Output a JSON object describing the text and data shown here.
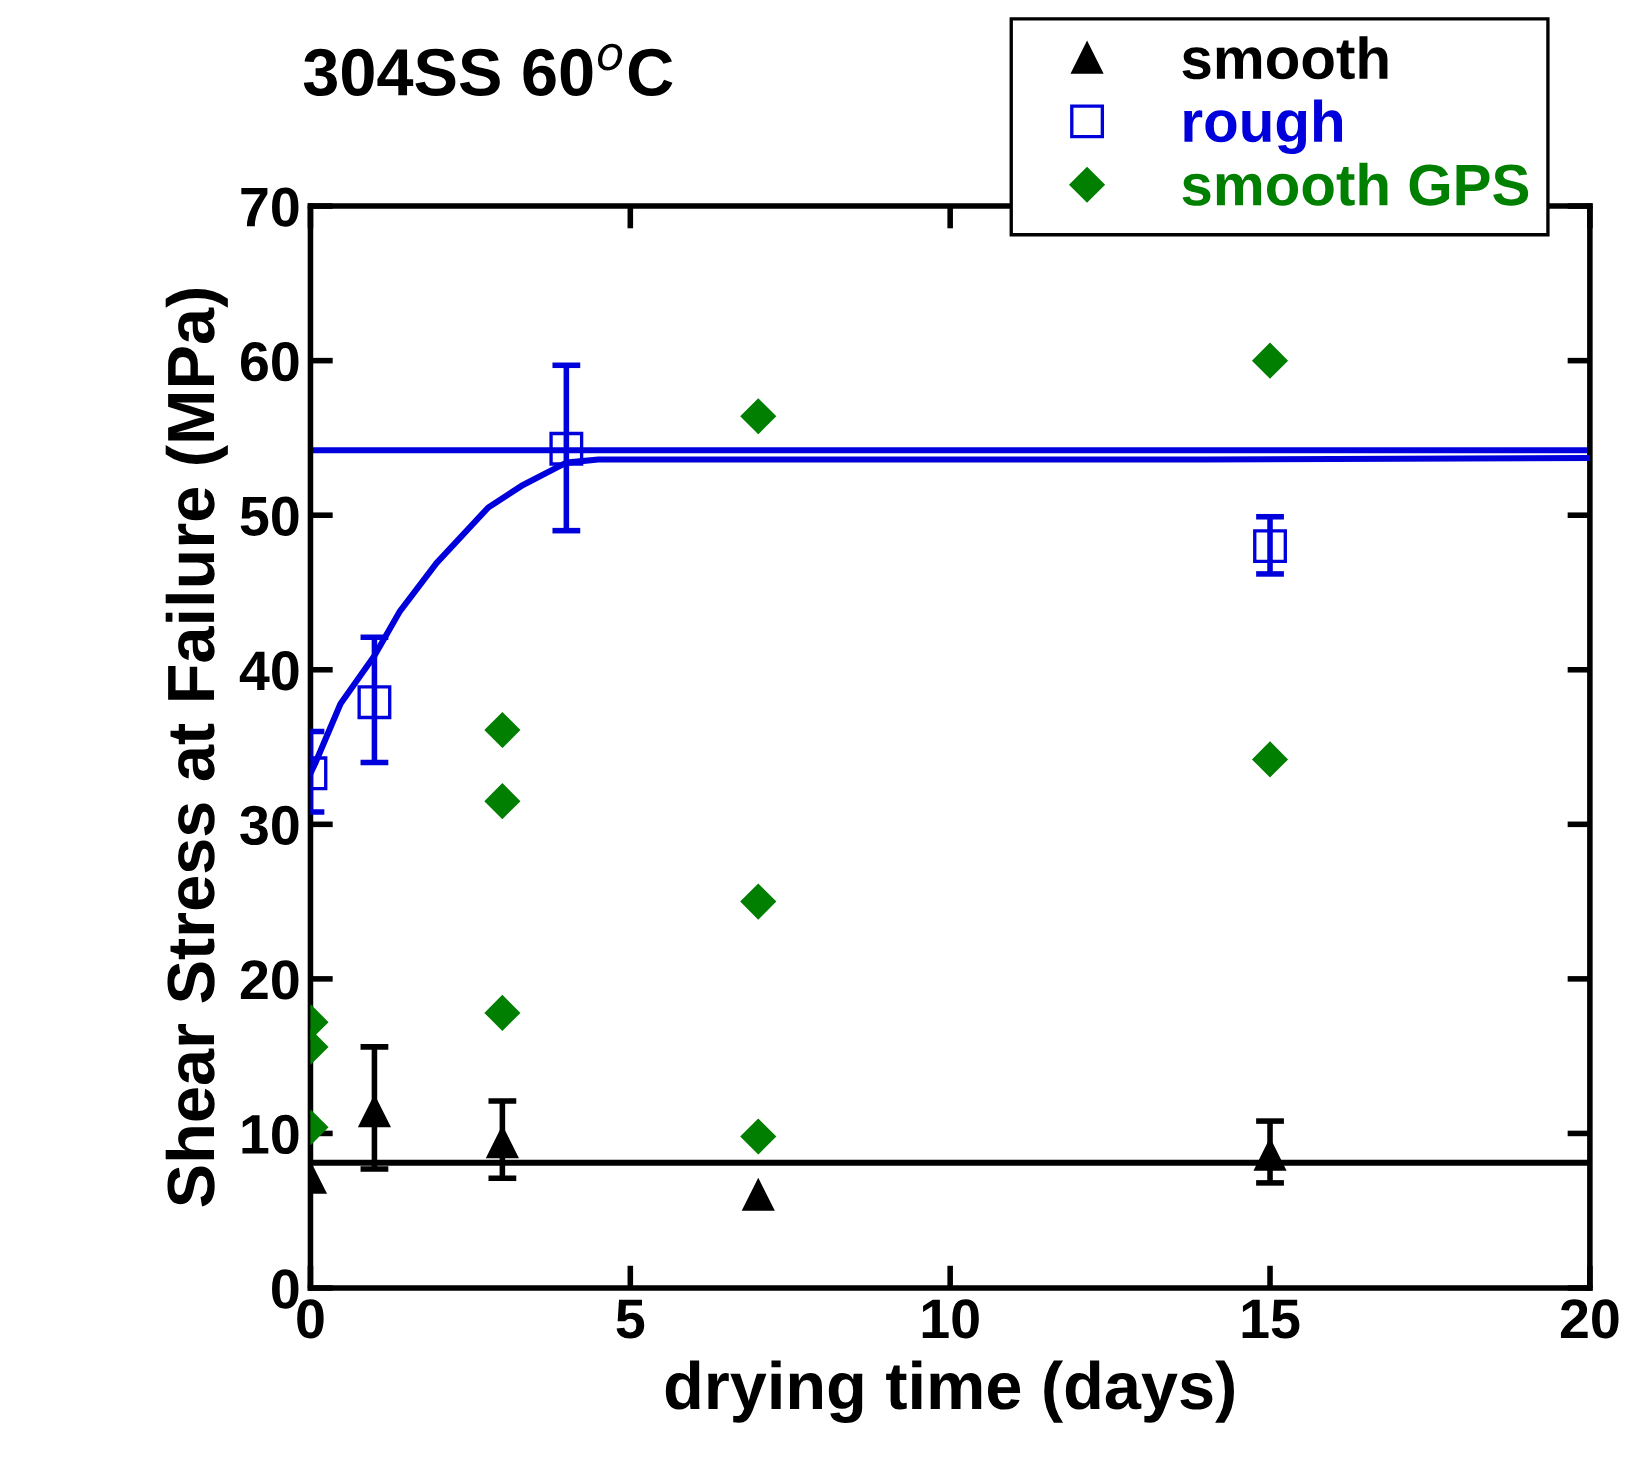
{
  "chart_data": {
    "type": "scatter",
    "title": "304SS 60$^{o}$C",
    "xlabel": "drying time (days)",
    "ylabel": "Shear Stress at Failure (MPa)",
    "xlim": [
      0,
      20
    ],
    "xticks": [
      0,
      5,
      10,
      15,
      20
    ],
    "ylim": [
      0,
      70
    ],
    "yticks": [
      0,
      10,
      20,
      30,
      40,
      50,
      60,
      70
    ],
    "grid": false,
    "legend": "top right",
    "series": [
      {
        "name": "smooth",
        "color": "#000000",
        "marker": "triangle",
        "x": [
          0,
          1,
          3,
          7,
          15
        ],
        "values": [
          7.1,
          11.4,
          9.4,
          6.0,
          8.6
        ],
        "errors": [
          null,
          [
            7.7,
            15.6
          ],
          [
            7.1,
            12.1
          ],
          null,
          [
            6.8,
            10.8
          ]
        ]
      },
      {
        "name": "rough",
        "color": "#0000dd",
        "marker": "square",
        "x": [
          0,
          1,
          4,
          15
        ],
        "values": [
          33.3,
          37.9,
          54.3,
          48.0
        ],
        "errors": [
          [
            30.8,
            36.0
          ],
          [
            34.0,
            42.1
          ],
          [
            49.0,
            59.7
          ],
          [
            46.2,
            49.9
          ]
        ]
      },
      {
        "name": "smooth GPS",
        "color": "#007f00",
        "marker": "diamond",
        "x": [
          0,
          0,
          0,
          3,
          3,
          3,
          7,
          7,
          7,
          15,
          15
        ],
        "values": [
          17.2,
          15.6,
          10.4,
          36.1,
          31.5,
          17.8,
          56.4,
          25.0,
          9.8,
          60.0,
          34.2
        ]
      },
      {
        "type": "line",
        "color": "#0000dd",
        "marker": "none",
        "line_style": "solid",
        "x": [
          0,
          0.07,
          0.47,
          1.0,
          1.4,
          1.97,
          2.78,
          3.3,
          4.0,
          4.5,
          14,
          20
        ],
        "values": [
          33.3,
          33.9,
          37.8,
          40.9,
          43.8,
          46.9,
          50.5,
          51.9,
          53.4,
          53.6,
          53.6,
          53.7
        ]
      }
    ],
    "ref_lines": [
      {
        "axis": "y",
        "value": 8.1,
        "color": "#000000",
        "line_style": "solid"
      },
      {
        "axis": "y",
        "value": 54.2,
        "color": "#0000dd",
        "line_style": "solid"
      }
    ]
  }
}
